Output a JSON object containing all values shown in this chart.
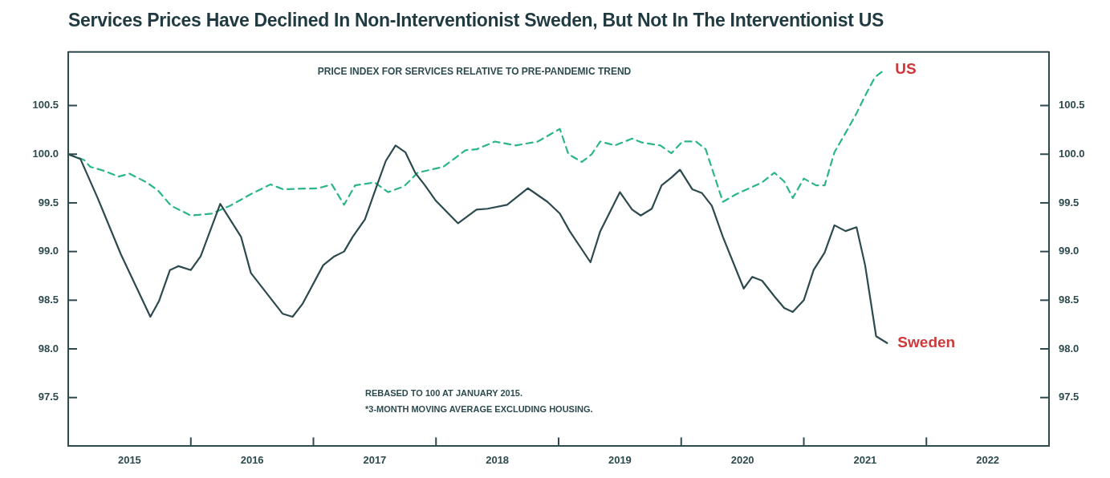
{
  "chart_data": {
    "type": "line",
    "title": "Services Prices Have Declined In Non-Interventionist Sweden, But Not In The Interventionist US",
    "subtitle": "PRICE INDEX FOR SERVICES RELATIVE TO PRE-PANDEMIC TREND",
    "annotations": [
      "REBASED TO 100 AT JANUARY 2015.",
      "*3-MONTH MOVING AVERAGE EXCLUDING HOUSING."
    ],
    "series": [
      {
        "name": "Sweden",
        "color": "#2d4a4e",
        "line_style": "solid",
        "x": [
          2015.0,
          2015.1,
          2015.24,
          2015.43,
          2015.67,
          2015.74,
          2015.83,
          2015.9,
          2016.0,
          2016.08,
          2016.24,
          2016.41,
          2016.49,
          2016.75,
          2016.83,
          2016.91,
          2017.08,
          2017.17,
          2017.25,
          2017.32,
          2017.42,
          2017.51,
          2017.59,
          2017.67,
          2017.75,
          2017.83,
          2017.91,
          2018.0,
          2018.18,
          2018.33,
          2018.42,
          2018.58,
          2018.75,
          2018.91,
          2019.01,
          2019.09,
          2019.26,
          2019.34,
          2019.5,
          2019.6,
          2019.67,
          2019.76,
          2019.84,
          2019.92,
          2019.99,
          2020.09,
          2020.17,
          2020.25,
          2020.34,
          2020.51,
          2020.58,
          2020.66,
          2020.76,
          2020.84,
          2020.91,
          2021.0,
          2021.08,
          2021.17,
          2021.25,
          2021.34,
          2021.43,
          2021.5,
          2021.59,
          2021.68
        ],
        "values": [
          100.0,
          99.95,
          99.55,
          98.97,
          98.33,
          98.49,
          98.81,
          98.85,
          98.81,
          98.95,
          99.49,
          99.15,
          98.78,
          98.36,
          98.33,
          98.46,
          98.86,
          98.95,
          99.0,
          99.15,
          99.33,
          99.65,
          99.93,
          100.09,
          100.02,
          99.81,
          99.68,
          99.52,
          99.29,
          99.43,
          99.44,
          99.48,
          99.65,
          99.51,
          99.39,
          99.21,
          98.89,
          99.21,
          99.61,
          99.43,
          99.37,
          99.44,
          99.68,
          99.76,
          99.84,
          99.64,
          99.6,
          99.47,
          99.15,
          98.62,
          98.74,
          98.7,
          98.54,
          98.42,
          98.38,
          98.5,
          98.81,
          98.99,
          99.27,
          99.21,
          99.25,
          98.86,
          98.13,
          98.06
        ]
      },
      {
        "name": "US",
        "color": "#2bb58a",
        "line_style": "dashed",
        "x": [
          2015.0,
          2015.13,
          2015.18,
          2015.29,
          2015.41,
          2015.5,
          2015.64,
          2015.73,
          2015.84,
          2016.0,
          2016.17,
          2016.32,
          2016.49,
          2016.65,
          2016.75,
          2017.04,
          2017.15,
          2017.25,
          2017.34,
          2017.5,
          2017.61,
          2017.74,
          2017.85,
          2018.06,
          2018.24,
          2018.33,
          2018.48,
          2018.65,
          2018.83,
          2019.01,
          2019.08,
          2019.19,
          2019.27,
          2019.34,
          2019.46,
          2019.6,
          2019.68,
          2019.83,
          2019.92,
          2020.01,
          2020.12,
          2020.2,
          2020.34,
          2020.45,
          2020.66,
          2020.76,
          2020.84,
          2020.91,
          2021.0,
          2021.1,
          2021.17,
          2021.25,
          2021.35,
          2021.43,
          2021.5,
          2021.58,
          2021.66
        ],
        "values": [
          100.0,
          99.94,
          99.87,
          99.83,
          99.77,
          99.8,
          99.71,
          99.63,
          99.47,
          99.37,
          99.39,
          99.47,
          99.59,
          99.69,
          99.64,
          99.65,
          99.69,
          99.48,
          99.68,
          99.71,
          99.61,
          99.67,
          99.81,
          99.87,
          100.04,
          100.05,
          100.13,
          100.09,
          100.13,
          100.26,
          100.0,
          99.92,
          100.0,
          100.13,
          100.09,
          100.16,
          100.12,
          100.09,
          100.01,
          100.13,
          100.13,
          100.05,
          99.51,
          99.59,
          99.71,
          99.81,
          99.72,
          99.55,
          99.75,
          99.68,
          99.68,
          100.02,
          100.24,
          100.42,
          100.6,
          100.79,
          100.87
        ]
      }
    ],
    "xlim": [
      2015,
      2023
    ],
    "xticks": [
      {
        "value": 2015.5,
        "label": "2015"
      },
      {
        "value": 2016,
        "label": null
      },
      {
        "value": 2016.5,
        "label": "2016"
      },
      {
        "value": 2017,
        "label": null
      },
      {
        "value": 2017.5,
        "label": "2017"
      },
      {
        "value": 2018,
        "label": null
      },
      {
        "value": 2018.5,
        "label": "2018"
      },
      {
        "value": 2019,
        "label": null
      },
      {
        "value": 2019.5,
        "label": "2019"
      },
      {
        "value": 2020,
        "label": null
      },
      {
        "value": 2020.5,
        "label": "2020"
      },
      {
        "value": 2021,
        "label": null
      },
      {
        "value": 2021.5,
        "label": "2021"
      },
      {
        "value": 2022,
        "label": null
      },
      {
        "value": 2022.5,
        "label": "2022"
      }
    ],
    "ylim": [
      97.0,
      101.05
    ],
    "yticks": [
      97.5,
      {
        "value": 98,
        "label": "98.0"
      },
      98.5,
      {
        "value": 99,
        "label": "99.0"
      },
      99.5,
      {
        "value": 100,
        "label": "100.0"
      },
      100.5
    ],
    "y2lim": [
      97.0,
      101.05
    ],
    "y2ticks": [
      97.5,
      {
        "value": 98,
        "label": "98.0"
      },
      98.5,
      {
        "value": 99,
        "label": "99.0"
      },
      99.5,
      {
        "value": 100,
        "label": "100.0"
      },
      100.5
    ],
    "grid": false,
    "legend": false,
    "marker": "none"
  }
}
